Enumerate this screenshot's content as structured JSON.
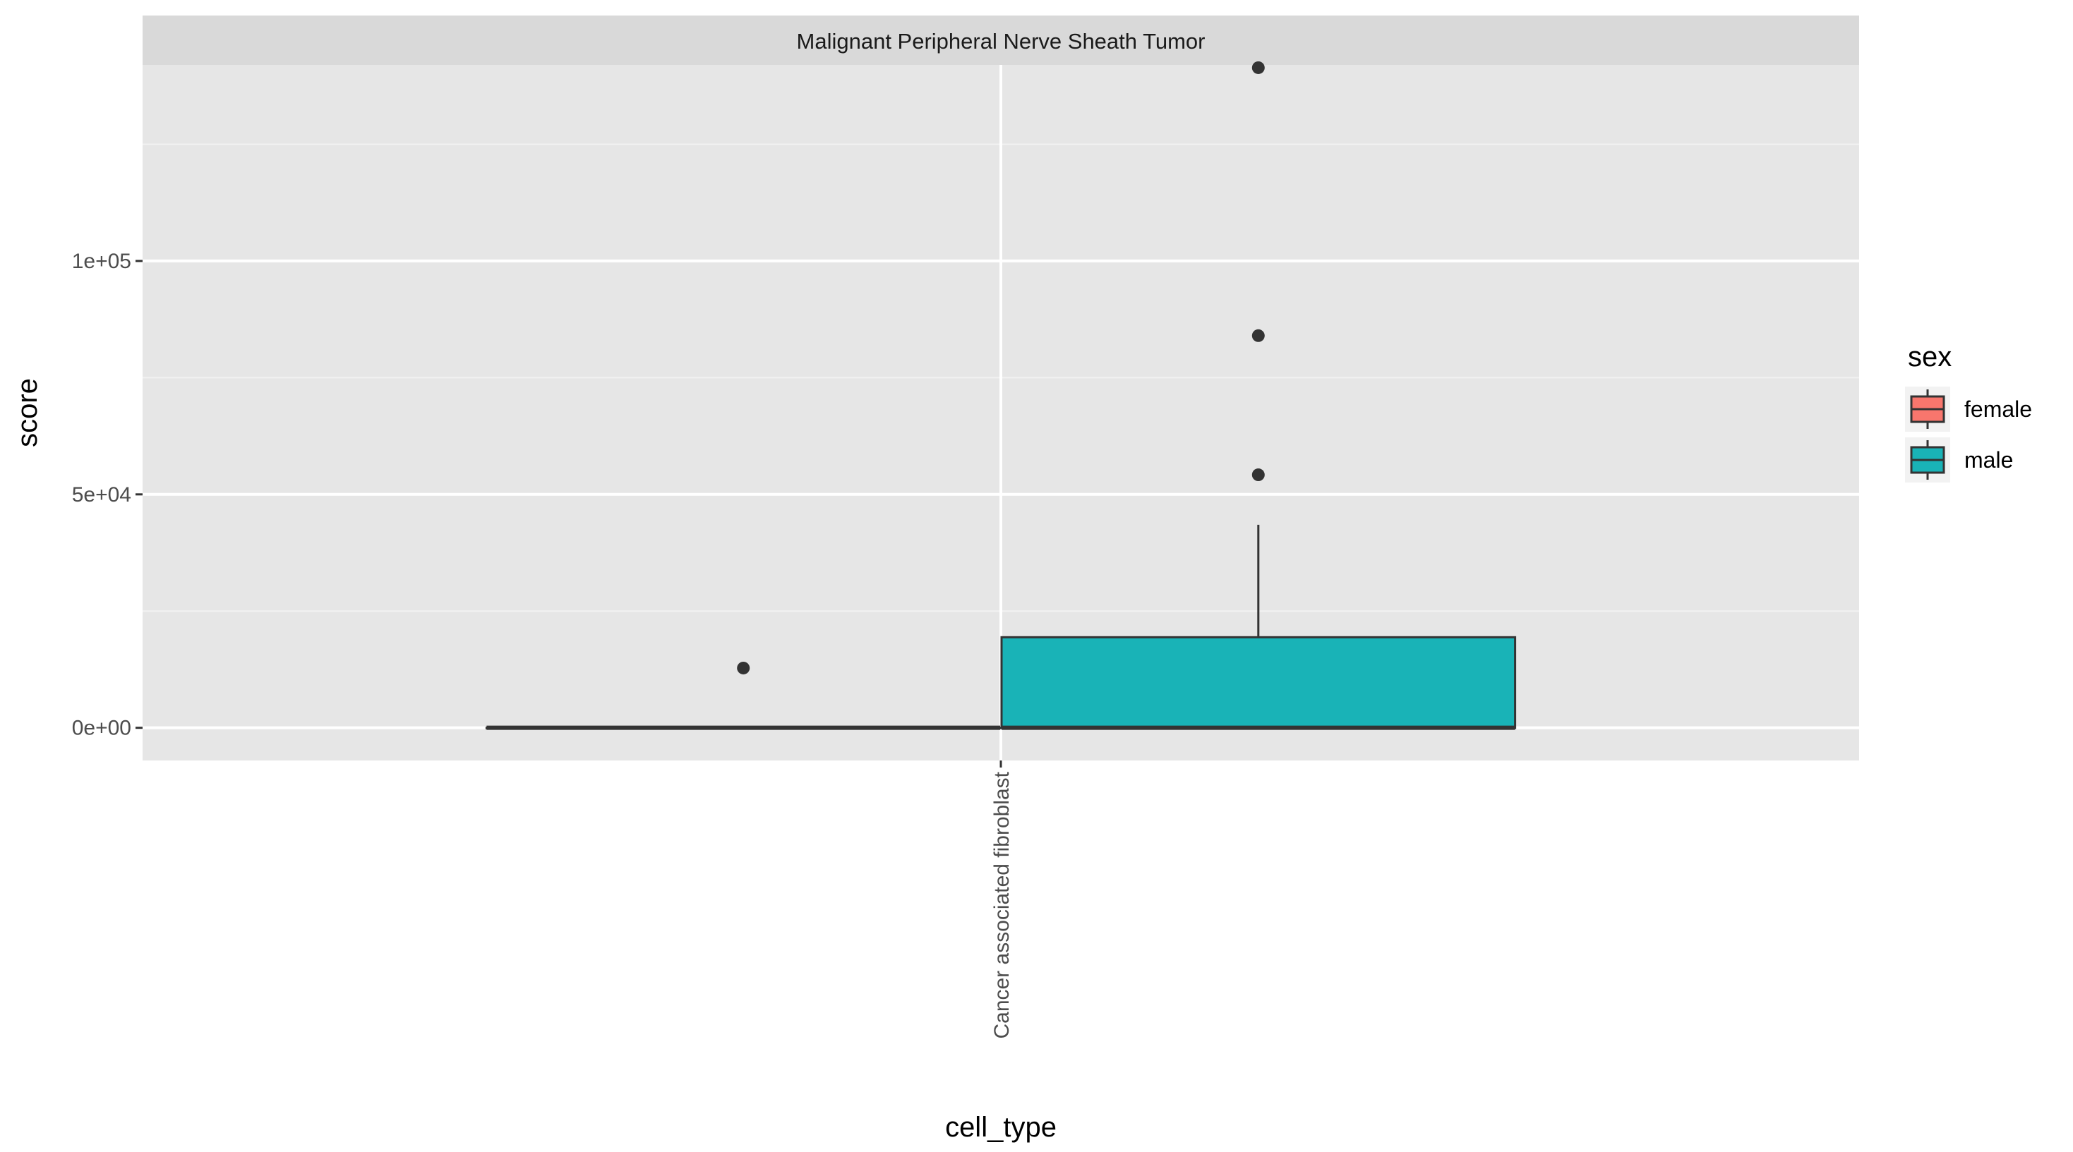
{
  "chart_data": {
    "type": "boxplot",
    "facet_title": "Malignant Peripheral Nerve Sheath Tumor",
    "xlabel": "cell_type",
    "ylabel": "score",
    "categories": [
      "Cancer associated fibroblast"
    ],
    "ylim": [
      -7000,
      142000
    ],
    "yticks": [
      {
        "value": 0,
        "label": "0e+00"
      },
      {
        "value": 50000,
        "label": "5e+04"
      },
      {
        "value": 100000,
        "label": "1e+05"
      }
    ],
    "y_minor_ticks": [
      25000,
      75000,
      125000
    ],
    "grid": true,
    "legend": {
      "title": "sex",
      "position": "right",
      "entries": [
        {
          "label": "female",
          "color": "#F8766D"
        },
        {
          "label": "male",
          "color": "#19B3B7"
        }
      ]
    },
    "series": [
      {
        "name": "female",
        "color": "#F8766D",
        "boxes": [
          {
            "category": "Cancer associated fibroblast",
            "whisker_low": 0,
            "q1": 0,
            "median": 0,
            "q3": 0,
            "whisker_high": 0,
            "outliers": [
              12800
            ]
          }
        ]
      },
      {
        "name": "male",
        "color": "#19B3B7",
        "boxes": [
          {
            "category": "Cancer associated fibroblast",
            "whisker_low": 0,
            "q1": 0,
            "median": 0,
            "q3": 19400,
            "whisker_high": 43500,
            "outliers": [
              54200,
              84000,
              141400
            ]
          }
        ]
      }
    ]
  }
}
